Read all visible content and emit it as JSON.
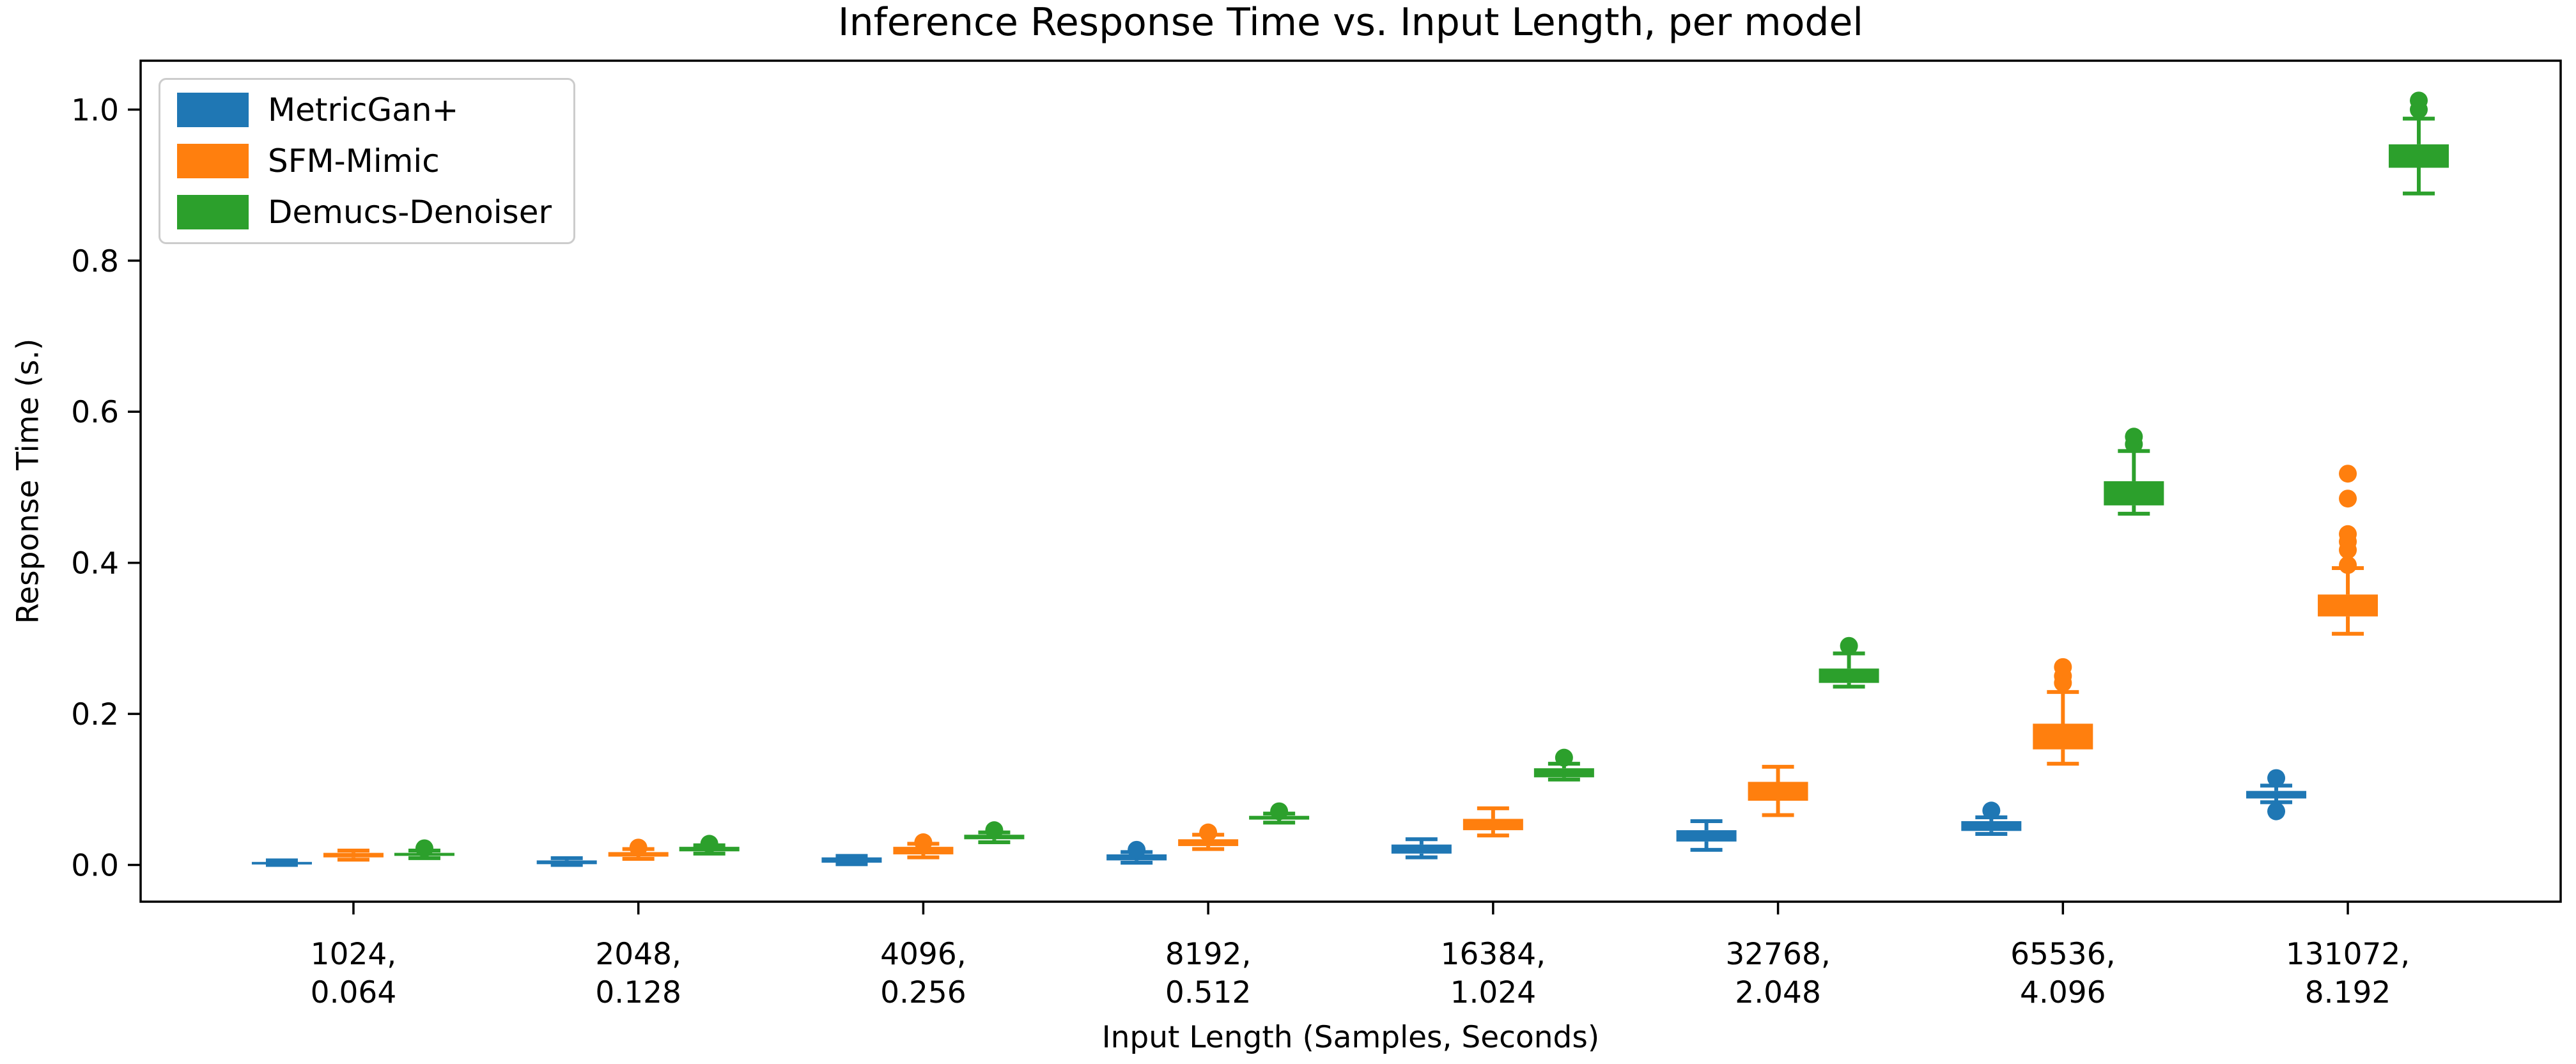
{
  "chart_data": {
    "type": "boxplot",
    "title": "Inference Response Time vs. Input Length, per model",
    "xlabel": "Input Length (Samples, Seconds)",
    "ylabel": "Response Time (s.)",
    "ylim": [
      -0.049,
      1.065
    ],
    "yticks": [
      0.0,
      0.2,
      0.4,
      0.6,
      0.8,
      1.0
    ],
    "ytick_labels": [
      "0.0",
      "0.2",
      "0.4",
      "0.6",
      "0.8",
      "1.0"
    ],
    "grid": false,
    "legend_position": "upper left",
    "categories": [
      {
        "samples": "1024",
        "seconds": "0.064",
        "label_top": "1024,",
        "label_bottom": "0.064"
      },
      {
        "samples": "2048",
        "seconds": "0.128",
        "label_top": "2048,",
        "label_bottom": "0.128"
      },
      {
        "samples": "4096",
        "seconds": "0.256",
        "label_top": "4096,",
        "label_bottom": "0.256"
      },
      {
        "samples": "8192",
        "seconds": "0.512",
        "label_top": "8192,",
        "label_bottom": "0.512"
      },
      {
        "samples": "16384",
        "seconds": "1.024",
        "label_top": "16384,",
        "label_bottom": "1.024"
      },
      {
        "samples": "32768",
        "seconds": "2.048",
        "label_top": "32768,",
        "label_bottom": "2.048"
      },
      {
        "samples": "65536",
        "seconds": "4.096",
        "label_top": "65536,",
        "label_bottom": "4.096"
      },
      {
        "samples": "131072",
        "seconds": "8.192",
        "label_top": "131072,",
        "label_bottom": "8.192"
      }
    ],
    "series": [
      {
        "name": "MetricGan+",
        "color": "#1f77b4",
        "boxes": [
          {
            "med": 0.002,
            "q1": 0.001,
            "q3": 0.004,
            "whislo": 0.0,
            "whishi": 0.006,
            "fliers": []
          },
          {
            "med": 0.0035,
            "q1": 0.001,
            "q3": 0.006,
            "whislo": 0.0,
            "whishi": 0.009,
            "fliers": []
          },
          {
            "med": 0.006,
            "q1": 0.003,
            "q3": 0.01,
            "whislo": 0.001,
            "whishi": 0.012,
            "fliers": []
          },
          {
            "med": 0.01,
            "q1": 0.006,
            "q3": 0.014,
            "whislo": 0.003,
            "whishi": 0.017,
            "fliers": [
              0.02
            ]
          },
          {
            "med": 0.021,
            "q1": 0.015,
            "q3": 0.027,
            "whislo": 0.01,
            "whishi": 0.034,
            "fliers": []
          },
          {
            "med": 0.038,
            "q1": 0.031,
            "q3": 0.046,
            "whislo": 0.02,
            "whishi": 0.058,
            "fliers": []
          },
          {
            "med": 0.052,
            "q1": 0.045,
            "q3": 0.058,
            "whislo": 0.041,
            "whishi": 0.063,
            "fliers": [
              0.072
            ]
          },
          {
            "med": 0.093,
            "q1": 0.088,
            "q3": 0.098,
            "whislo": 0.083,
            "whishi": 0.105,
            "fliers": [
              0.115,
              0.071
            ]
          }
        ]
      },
      {
        "name": "SFM-Mimic",
        "color": "#ff7f0e",
        "boxes": [
          {
            "med": 0.013,
            "q1": 0.01,
            "q3": 0.016,
            "whislo": 0.007,
            "whishi": 0.019,
            "fliers": []
          },
          {
            "med": 0.014,
            "q1": 0.011,
            "q3": 0.017,
            "whislo": 0.008,
            "whishi": 0.021,
            "fliers": [
              0.023
            ]
          },
          {
            "med": 0.019,
            "q1": 0.014,
            "q3": 0.024,
            "whislo": 0.01,
            "whishi": 0.028,
            "fliers": [
              0.03
            ]
          },
          {
            "med": 0.029,
            "q1": 0.025,
            "q3": 0.034,
            "whislo": 0.021,
            "whishi": 0.04,
            "fliers": [
              0.043
            ]
          },
          {
            "med": 0.053,
            "q1": 0.046,
            "q3": 0.061,
            "whislo": 0.039,
            "whishi": 0.075,
            "fliers": []
          },
          {
            "med": 0.097,
            "q1": 0.085,
            "q3": 0.11,
            "whislo": 0.066,
            "whishi": 0.13,
            "fliers": []
          },
          {
            "med": 0.17,
            "q1": 0.153,
            "q3": 0.187,
            "whislo": 0.134,
            "whishi": 0.229,
            "fliers": [
              0.241,
              0.25,
              0.262
            ]
          },
          {
            "med": 0.343,
            "q1": 0.329,
            "q3": 0.358,
            "whislo": 0.306,
            "whishi": 0.393,
            "fliers": [
              0.397,
              0.417,
              0.428,
              0.438,
              0.485,
              0.518
            ]
          }
        ]
      },
      {
        "name": "Demucs-Denoiser",
        "color": "#2ca02c",
        "boxes": [
          {
            "med": 0.014,
            "q1": 0.012,
            "q3": 0.016,
            "whislo": 0.009,
            "whishi": 0.019,
            "fliers": [
              0.022
            ]
          },
          {
            "med": 0.021,
            "q1": 0.018,
            "q3": 0.024,
            "whislo": 0.015,
            "whishi": 0.026,
            "fliers": [
              0.028
            ]
          },
          {
            "med": 0.037,
            "q1": 0.034,
            "q3": 0.04,
            "whislo": 0.03,
            "whishi": 0.043,
            "fliers": [
              0.046
            ]
          },
          {
            "med": 0.062,
            "q1": 0.06,
            "q3": 0.065,
            "whislo": 0.056,
            "whishi": 0.068,
            "fliers": [
              0.071
            ]
          },
          {
            "med": 0.122,
            "q1": 0.116,
            "q3": 0.128,
            "whislo": 0.113,
            "whishi": 0.134,
            "fliers": [
              0.142
            ]
          },
          {
            "med": 0.25,
            "q1": 0.241,
            "q3": 0.26,
            "whislo": 0.236,
            "whishi": 0.28,
            "fliers": [
              0.29
            ]
          },
          {
            "med": 0.49,
            "q1": 0.476,
            "q3": 0.508,
            "whislo": 0.465,
            "whishi": 0.548,
            "fliers": [
              0.557,
              0.567
            ]
          },
          {
            "med": 0.938,
            "q1": 0.923,
            "q3": 0.954,
            "whislo": 0.889,
            "whishi": 0.988,
            "fliers": [
              1.0,
              1.012
            ]
          }
        ]
      }
    ]
  }
}
